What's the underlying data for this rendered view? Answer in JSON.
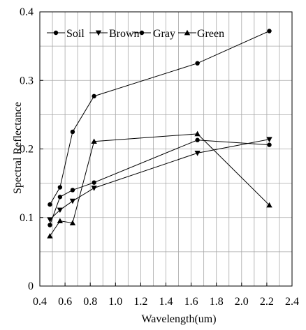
{
  "chart_data": {
    "type": "line",
    "title": "",
    "xlabel": "Wavelength(um)",
    "ylabel": "Spectral Reflectance",
    "xlim": [
      0.4,
      2.4
    ],
    "ylim": [
      0,
      0.4
    ],
    "xticks": [
      0.4,
      0.6,
      0.8,
      1.0,
      1.2,
      1.4,
      1.6,
      1.8,
      2.0,
      2.2,
      2.4
    ],
    "xtick_labels": [
      "0.4",
      "0.6",
      "0.8",
      "1.0",
      "1.2",
      "1.4",
      "1.6",
      "1.8",
      "2.0",
      "2.2",
      "2.4"
    ],
    "yticks": [
      0,
      0.1,
      0.2,
      0.3,
      0.4
    ],
    "ytick_labels": [
      "0",
      "0.1",
      "0.2",
      "0.3",
      "0.4"
    ],
    "grid": "vertical lines at every 0.1 um; horizontal lines at every 0.05",
    "legend_position": "top",
    "series": [
      {
        "name": "Soil",
        "marker": "circle",
        "color": "#000000",
        "x": [
          0.48,
          0.56,
          0.66,
          0.83,
          1.65,
          2.22
        ],
        "y": [
          0.119,
          0.144,
          0.225,
          0.277,
          0.325,
          0.372
        ]
      },
      {
        "name": "Brown",
        "marker": "triangle-down",
        "color": "#000000",
        "x": [
          0.48,
          0.56,
          0.66,
          0.83,
          1.65,
          2.22
        ],
        "y": [
          0.097,
          0.111,
          0.124,
          0.143,
          0.194,
          0.214
        ]
      },
      {
        "name": "Gray",
        "marker": "circle",
        "color": "#000000",
        "x": [
          0.48,
          0.56,
          0.66,
          0.83,
          1.65,
          2.22
        ],
        "y": [
          0.089,
          0.13,
          0.14,
          0.151,
          0.213,
          0.206
        ]
      },
      {
        "name": "Green",
        "marker": "triangle-up",
        "color": "#000000",
        "x": [
          0.48,
          0.56,
          0.66,
          0.83,
          1.65,
          2.22
        ],
        "y": [
          0.073,
          0.095,
          0.092,
          0.211,
          0.222,
          0.118
        ]
      }
    ]
  }
}
